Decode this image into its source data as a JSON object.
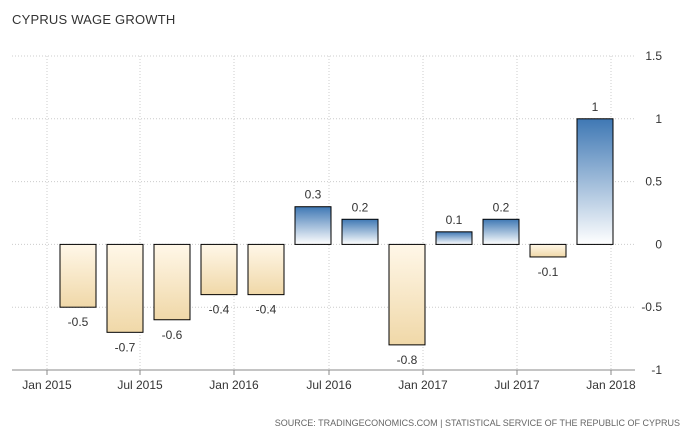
{
  "chart_data": {
    "type": "bar",
    "title": "CYPRUS WAGE GROWTH",
    "categories": [
      "Q1 2015",
      "Q2 2015",
      "Q3 2015",
      "Q4 2015",
      "Q1 2016",
      "Q2 2016",
      "Q3 2016",
      "Q4 2016",
      "Q1 2017",
      "Q2 2017",
      "Q3 2017",
      "Q4 2017"
    ],
    "values": [
      -0.5,
      -0.7,
      -0.6,
      -0.4,
      -0.4,
      0.3,
      0.2,
      -0.8,
      0.1,
      0.2,
      -0.1,
      1
    ],
    "value_labels": [
      "-0.5",
      "-0.7",
      "-0.6",
      "-0.4",
      "-0.4",
      "0.3",
      "0.2",
      "-0.8",
      "0.1",
      "0.2",
      "-0.1",
      "1"
    ],
    "x_tick_labels": [
      "Jan 2015",
      "Jul 2015",
      "Jan 2016",
      "Jul 2016",
      "Jan 2017",
      "Jul 2017",
      "Jan 2018"
    ],
    "y_tick_labels": [
      "1.5",
      "1",
      "0.5",
      "0",
      "-0.5",
      "-1"
    ],
    "y_ticks": [
      1.5,
      1,
      0.5,
      0,
      -0.5,
      -1
    ],
    "ylim": [
      -1,
      1.5
    ],
    "xlabel": "",
    "ylabel": "",
    "grid": "dotted",
    "y_axis_position": "right",
    "colors": {
      "positive_top": "#3f78b4",
      "positive_bottom": "#ffffff",
      "negative_top": "#fff7e8",
      "negative_bottom": "#f0d8a8",
      "bar_stroke": "#000000",
      "grid": "#cccccc",
      "axis": "#888888"
    }
  },
  "source": "SOURCE: TRADINGECONOMICS.COM | STATISTICAL SERVICE OF THE REPUBLIC OF CYPRUS"
}
